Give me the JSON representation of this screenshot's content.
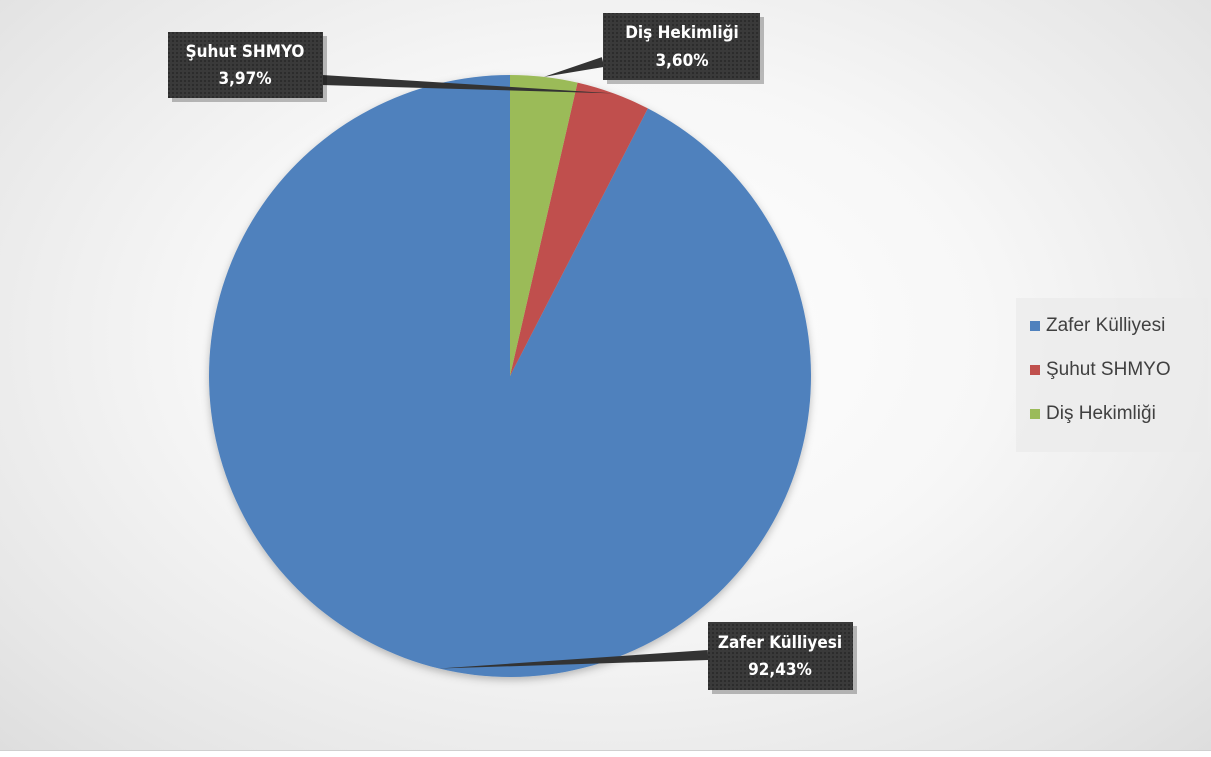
{
  "chart_data": {
    "type": "pie",
    "title": "",
    "slices": [
      {
        "label": "Zafer Külliyesi",
        "value": 92.43,
        "display": "92,43%",
        "color": "#4F81BD"
      },
      {
        "label": "Şuhut SHMYO",
        "value": 3.97,
        "display": "3,97%",
        "color": "#C0504D"
      },
      {
        "label": "Diş Hekimliği",
        "value": 3.6,
        "display": "3,60%",
        "color": "#9BBB59"
      }
    ],
    "start": "12 o'clock",
    "direction": "counterclockwise",
    "data_labels": "callouts with category name and percent",
    "legend_position": "right"
  }
}
